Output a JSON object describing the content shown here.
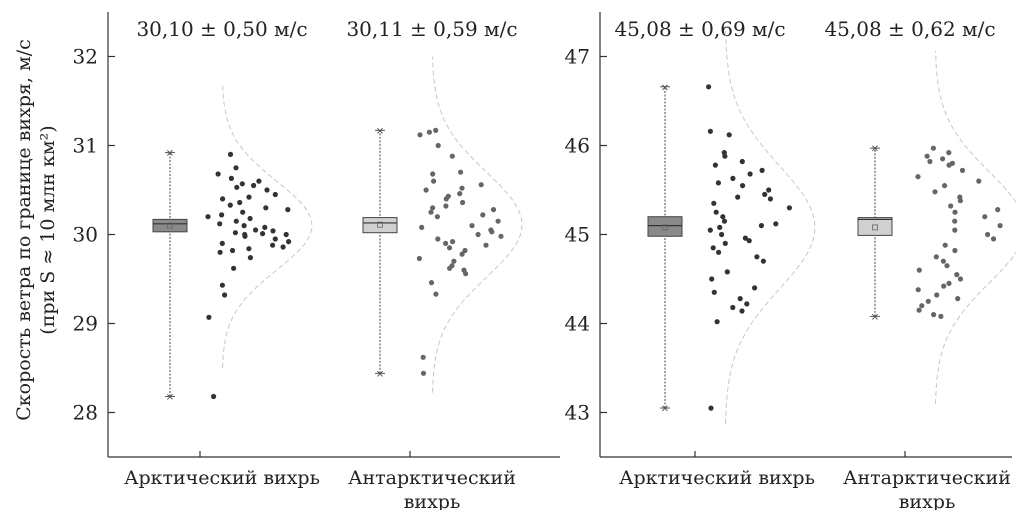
{
  "figure": {
    "ylabel_line1": "Скорость ветра по границе вихря, м/с",
    "ylabel_line2": "(при S ≈ 10 млн км²)"
  },
  "chart_data": [
    {
      "type": "box-scatter",
      "ylim": [
        27.5,
        32.5
      ],
      "yticks": [
        28,
        29,
        30,
        31,
        32
      ],
      "categories": [
        {
          "label_lines": [
            "Арктический вихрь"
          ],
          "stat_label": "30,10 ± 0,50 м/с",
          "box_color": "#8a8a8a",
          "dot_color": "#333333",
          "whisker": [
            28.18,
            30.92
          ],
          "box": [
            30.03,
            30.17
          ],
          "median": 30.12,
          "mean": 30.1,
          "sd": 0.5,
          "points": [
            28.18,
            29.07,
            29.32,
            29.43,
            29.62,
            29.74,
            29.8,
            29.82,
            29.84,
            29.86,
            29.88,
            29.9,
            29.92,
            29.95,
            29.98,
            30.0,
            30.0,
            30.01,
            30.02,
            30.04,
            30.05,
            30.08,
            30.1,
            30.12,
            30.15,
            30.18,
            30.2,
            30.22,
            30.25,
            30.28,
            30.3,
            30.33,
            30.36,
            30.4,
            30.42,
            30.45,
            30.5,
            30.53,
            30.55,
            30.57,
            30.6,
            30.63,
            30.68,
            30.75,
            30.9
          ]
        },
        {
          "label_lines": [
            "Антарктический",
            "вихрь"
          ],
          "stat_label": "30,11 ± 0,59 м/с",
          "box_color": "#d0d0d0",
          "dot_color": "#666666",
          "whisker": [
            28.44,
            31.17
          ],
          "box": [
            30.02,
            30.19
          ],
          "median": 30.13,
          "mean": 30.11,
          "sd": 0.59,
          "points": [
            28.44,
            28.62,
            29.33,
            29.46,
            29.56,
            29.6,
            29.62,
            29.65,
            29.7,
            29.73,
            29.78,
            29.82,
            29.85,
            29.88,
            29.9,
            29.92,
            29.95,
            29.98,
            30.0,
            30.03,
            30.05,
            30.08,
            30.1,
            30.15,
            30.2,
            30.22,
            30.25,
            30.28,
            30.3,
            30.32,
            30.36,
            30.4,
            30.43,
            30.46,
            30.5,
            30.52,
            30.56,
            30.6,
            30.68,
            30.7,
            30.88,
            31.0,
            31.12,
            31.15,
            31.17
          ]
        }
      ]
    },
    {
      "type": "box-scatter",
      "ylim": [
        42.5,
        47.5
      ],
      "yticks": [
        43,
        44,
        45,
        46,
        47
      ],
      "categories": [
        {
          "label_lines": [
            "Арктический вихрь"
          ],
          "stat_label": "45,08 ± 0,69 м/с",
          "box_color": "#8a8a8a",
          "dot_color": "#333333",
          "whisker": [
            43.05,
            46.66
          ],
          "box": [
            44.98,
            45.2
          ],
          "median": 45.1,
          "mean": 45.08,
          "sd": 0.69,
          "points": [
            43.05,
            44.02,
            44.14,
            44.18,
            44.22,
            44.28,
            44.35,
            44.4,
            44.5,
            44.58,
            44.7,
            44.75,
            44.8,
            44.85,
            44.9,
            44.93,
            44.96,
            45.0,
            45.05,
            45.08,
            45.1,
            45.12,
            45.15,
            45.2,
            45.25,
            45.3,
            45.35,
            45.4,
            45.42,
            45.45,
            45.5,
            45.55,
            45.58,
            45.63,
            45.68,
            45.72,
            45.78,
            45.82,
            45.88,
            45.92,
            46.12,
            46.16,
            46.66
          ]
        },
        {
          "label_lines": [
            "Антарктический",
            "вихрь"
          ],
          "stat_label": "45,08 ± 0,62 м/с",
          "box_color": "#d0d0d0",
          "dot_color": "#666666",
          "whisker": [
            44.08,
            45.97
          ],
          "box": [
            44.99,
            45.19
          ],
          "median": 45.17,
          "mean": 45.08,
          "sd": 0.62,
          "points": [
            44.08,
            44.1,
            44.15,
            44.2,
            44.25,
            44.28,
            44.32,
            44.38,
            44.42,
            44.45,
            44.5,
            44.55,
            44.6,
            44.65,
            44.7,
            44.75,
            44.82,
            44.88,
            44.95,
            45.0,
            45.05,
            45.1,
            45.15,
            45.2,
            45.25,
            45.28,
            45.32,
            45.38,
            45.42,
            45.48,
            45.55,
            45.6,
            45.65,
            45.72,
            45.78,
            45.8,
            45.82,
            45.85,
            45.88,
            45.92,
            45.97
          ]
        }
      ]
    }
  ]
}
